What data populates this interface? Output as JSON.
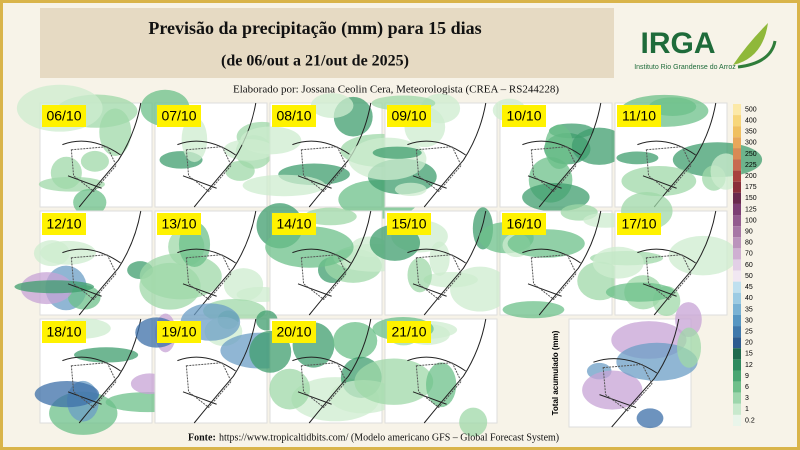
{
  "header": {
    "title": "Previsão da precipitação (mm) para 15 dias",
    "subtitle": "(de 06/out a 21/out de 2025)",
    "credit": "Elaborado por: Jossana Ceolin Cera, Meteorologista (CREA – RS244228)"
  },
  "logo": {
    "name": "IRGA",
    "tagline": "Instituto Rio Grandense do Arroz"
  },
  "panels": [
    "06/10",
    "07/10",
    "08/10",
    "09/10",
    "10/10",
    "11/10",
    "12/10",
    "13/10",
    "14/10",
    "15/10",
    "16/10",
    "17/10",
    "18/10",
    "19/10",
    "20/10",
    "21/10"
  ],
  "total_label": "Total acumulado (mm)",
  "colorbar": {
    "labels": [
      500,
      400,
      350,
      300,
      250,
      225,
      200,
      175,
      150,
      125,
      100,
      90,
      80,
      70,
      60,
      50,
      45,
      40,
      35,
      30,
      25,
      20,
      15,
      12,
      9,
      6,
      3,
      1,
      0.2
    ]
  },
  "footer": {
    "label": "Fonte:",
    "text": "https://www.tropicaltidbits.com/ (Modelo americano GFS – Global Forecast System)"
  }
}
